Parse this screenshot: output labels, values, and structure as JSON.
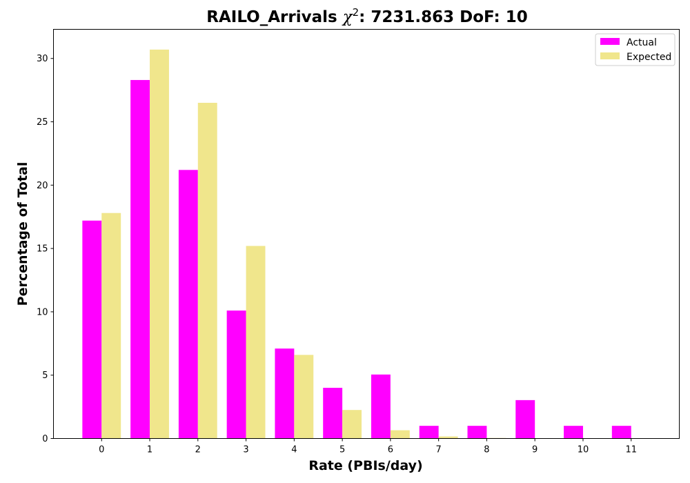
{
  "chart_data": {
    "type": "bar",
    "title": {
      "prefix": "RAILO_Arrivals ",
      "symbol": "χ",
      "superscript": "2",
      "suffix": ": 7231.863 DoF: 10"
    },
    "xlabel": "Rate (PBIs/day)",
    "ylabel": "Percentage of Total",
    "categories": [
      "0",
      "1",
      "2",
      "3",
      "4",
      "5",
      "6",
      "7",
      "8",
      "9",
      "10",
      "11"
    ],
    "yticks": [
      0,
      5,
      10,
      15,
      20,
      25,
      30
    ],
    "ylim": [
      0,
      32.3
    ],
    "xlim": [
      -1.0,
      12.0
    ],
    "grid": false,
    "legend_position": "top-right",
    "series": [
      {
        "name": "Actual",
        "color": "#ff00ff",
        "values": [
          17.2,
          28.3,
          21.2,
          10.1,
          7.1,
          4.0,
          5.05,
          1.0,
          1.0,
          3.03,
          1.0,
          1.0
        ]
      },
      {
        "name": "Expected",
        "color": "#f0e68c",
        "values": [
          17.8,
          30.7,
          26.5,
          15.2,
          6.6,
          2.25,
          0.65,
          0.16,
          0.04,
          0.0,
          0.0,
          0.0
        ]
      }
    ]
  }
}
